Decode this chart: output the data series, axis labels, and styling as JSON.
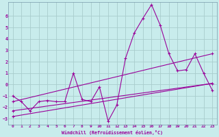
{
  "xlabel": "Windchill (Refroidissement éolien,°C)",
  "line_color": "#990099",
  "bg_color": "#c8ecec",
  "grid_color": "#a8cccc",
  "spine_color": "#7799aa",
  "xlim": [
    -0.5,
    23.5
  ],
  "ylim": [
    -3.5,
    7.2
  ],
  "yticks": [
    -3,
    -2,
    -1,
    0,
    1,
    2,
    3,
    4,
    5,
    6
  ],
  "xticks": [
    0,
    1,
    2,
    3,
    4,
    5,
    6,
    7,
    8,
    9,
    10,
    11,
    12,
    13,
    14,
    15,
    16,
    17,
    18,
    19,
    20,
    21,
    22,
    23
  ],
  "series1_x": [
    0,
    1,
    2,
    3,
    4,
    5,
    6,
    7,
    8,
    9,
    10,
    11,
    12,
    13,
    14,
    15,
    16,
    17,
    18,
    19,
    20,
    21,
    22,
    23
  ],
  "series1_y": [
    -1.0,
    -1.5,
    -2.3,
    -1.5,
    -1.4,
    -1.5,
    -1.5,
    1.0,
    -1.3,
    -1.5,
    -0.2,
    -3.2,
    -1.8,
    2.3,
    4.5,
    5.8,
    7.0,
    5.2,
    2.7,
    1.2,
    1.3,
    2.7,
    1.0,
    -0.5
  ],
  "series2_x": [
    0,
    23
  ],
  "series2_y": [
    -1.5,
    2.7
  ],
  "series3_x": [
    0,
    23
  ],
  "series3_y": [
    -2.3,
    0.1
  ],
  "series4_x": [
    0,
    23
  ],
  "series4_y": [
    -2.8,
    0.1
  ]
}
